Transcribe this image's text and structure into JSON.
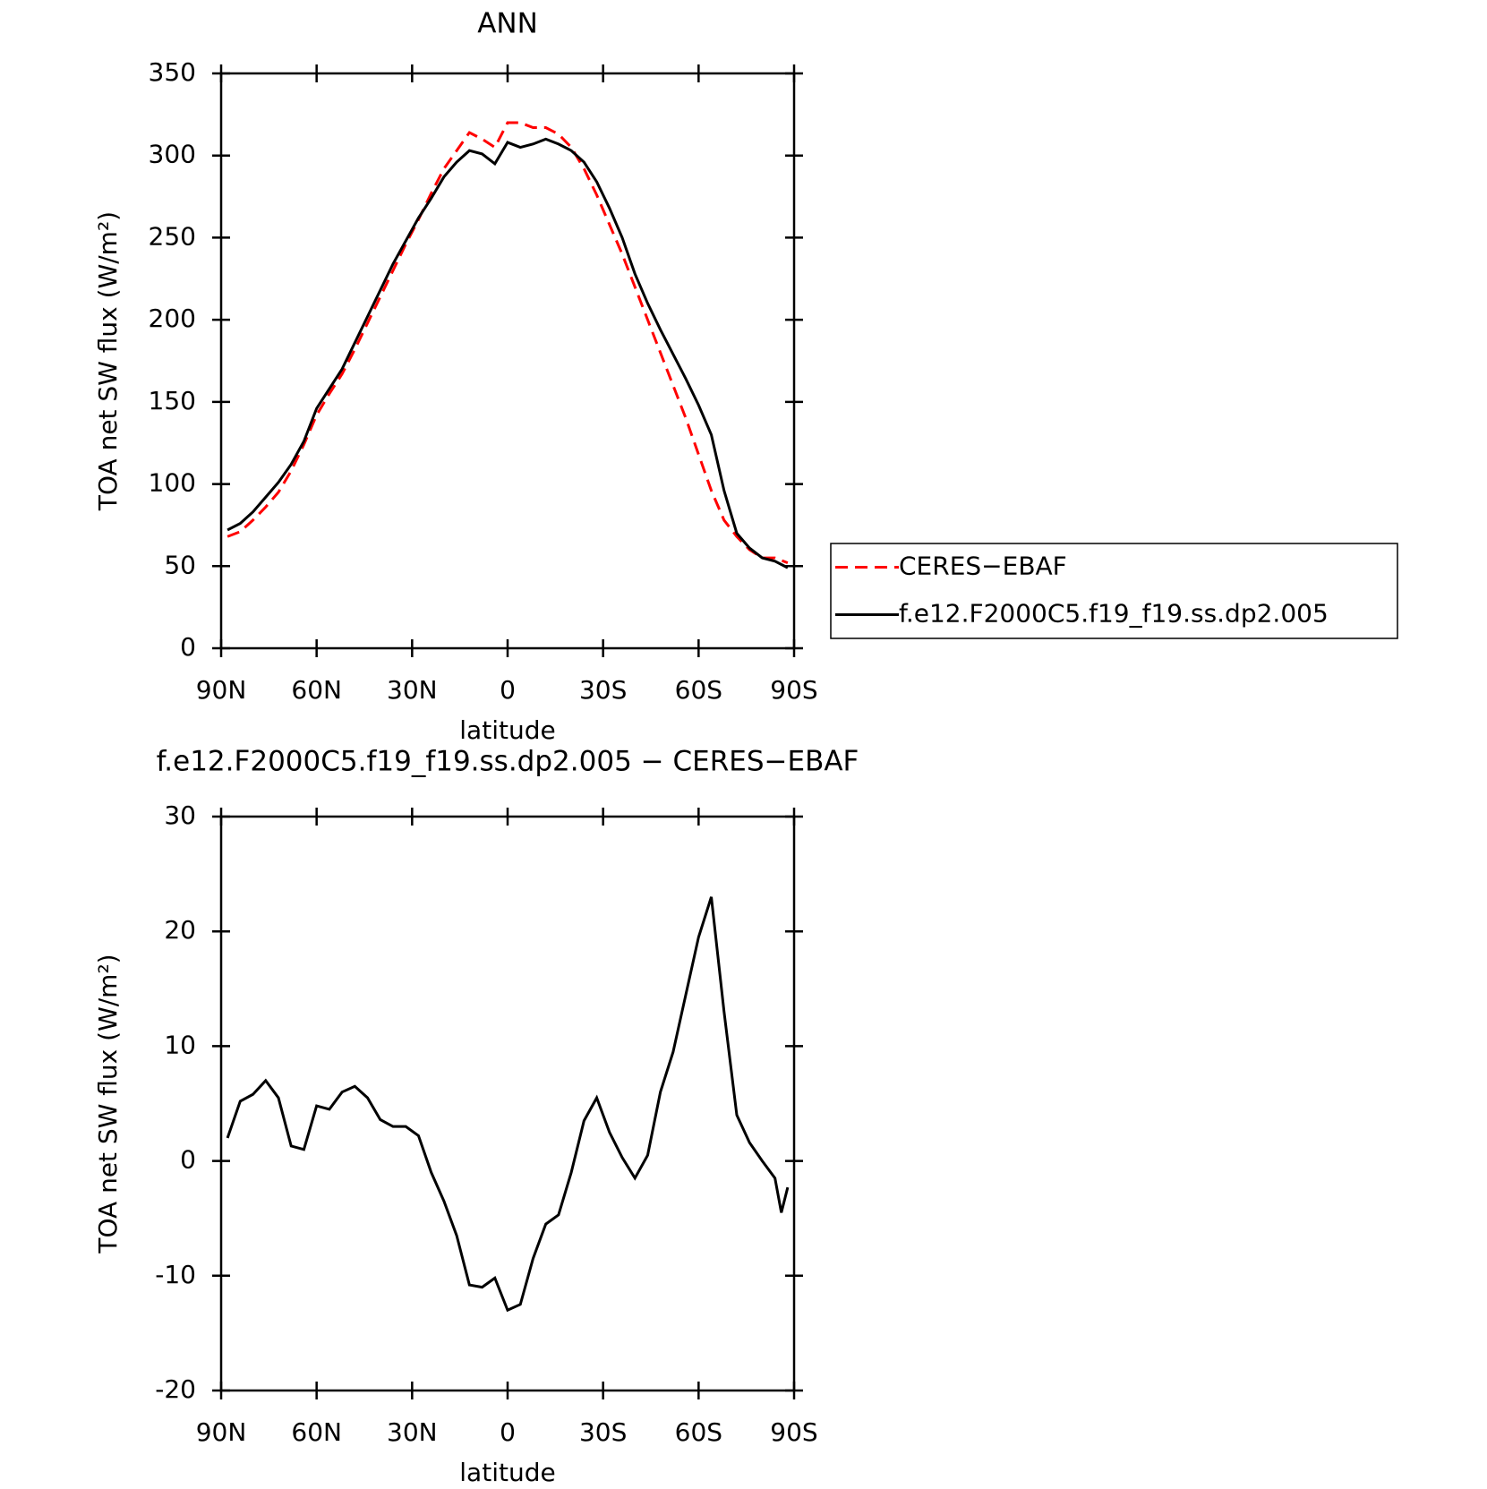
{
  "chart_data": [
    {
      "type": "line",
      "title": "ANN",
      "x_label": "latitude",
      "y_label": "TOA net SW flux (W/m²)",
      "x": [
        88,
        84,
        80,
        76,
        72,
        68,
        64,
        60,
        56,
        52,
        48,
        44,
        40,
        36,
        32,
        28,
        24,
        20,
        16,
        12,
        8,
        4,
        0,
        -4,
        -8,
        -12,
        -16,
        -20,
        -24,
        -28,
        -32,
        -36,
        -40,
        -44,
        -48,
        -52,
        -56,
        -60,
        -64,
        -68,
        -72,
        -76,
        -80,
        -84,
        -88
      ],
      "series": [
        {
          "name": "CERES−EBAF",
          "color": "#ff0000",
          "dashed": true,
          "values": [
            68,
            71,
            78,
            86,
            95,
            108,
            124,
            142,
            155,
            167,
            182,
            198,
            214,
            230,
            246,
            261,
            277,
            292,
            303,
            314,
            310,
            305,
            320,
            320,
            317,
            317,
            313,
            305,
            292,
            276,
            258,
            240,
            220,
            200,
            180,
            160,
            140,
            118,
            96,
            78,
            68,
            60,
            55,
            55,
            52
          ]
        },
        {
          "name": "f.e12.F2000C5.f19_f19.ss.dp2.005",
          "color": "#000000",
          "dashed": false,
          "values": [
            72,
            76,
            83,
            92,
            101,
            112,
            126,
            146,
            158,
            170,
            186,
            202,
            218,
            234,
            248,
            262,
            274,
            287,
            296,
            303,
            301,
            295,
            308,
            305,
            307,
            310,
            307,
            303,
            296,
            284,
            268,
            250,
            228,
            210,
            194,
            179,
            164,
            148,
            130,
            96,
            70,
            61,
            55,
            53,
            49
          ]
        }
      ],
      "xlim": [
        90,
        -90
      ],
      "xticks": [
        {
          "value": 90,
          "label": "90N"
        },
        {
          "value": 60,
          "label": "60N"
        },
        {
          "value": 30,
          "label": "30N"
        },
        0,
        {
          "value": -30,
          "label": "30S"
        },
        {
          "value": -60,
          "label": "60S"
        },
        {
          "value": -90,
          "label": "90S"
        }
      ],
      "ylim": [
        0,
        350
      ],
      "yticks": [
        0,
        50,
        100,
        150,
        200,
        250,
        300,
        350
      ],
      "legend": "right"
    },
    {
      "type": "line",
      "title": "f.e12.F2000C5.f19_f19.ss.dp2.005 − CERES−EBAF",
      "x_label": "latitude",
      "y_label": "TOA net SW flux (W/m²)",
      "x": [
        88,
        84,
        80,
        76,
        72,
        68,
        64,
        60,
        56,
        52,
        48,
        44,
        40,
        36,
        32,
        28,
        24,
        20,
        16,
        12,
        8,
        4,
        0,
        -4,
        -8,
        -12,
        -16,
        -20,
        -24,
        -28,
        -32,
        -36,
        -40,
        -44,
        -48,
        -52,
        -56,
        -60,
        -64,
        -68,
        -72,
        -76,
        -80,
        -84,
        -86,
        -88
      ],
      "series": [
        {
          "color": "#000000",
          "dashed": false,
          "values": [
            2,
            5.2,
            5.8,
            7,
            5.5,
            1.3,
            1,
            4.8,
            4.5,
            6,
            6.5,
            5.5,
            3.6,
            3,
            3,
            2.2,
            -1,
            -3.5,
            -6.5,
            -10.8,
            -11,
            -10.2,
            -13,
            -12.5,
            -8.5,
            -5.5,
            -4.7,
            -1,
            3.5,
            5.5,
            2.5,
            0.3,
            -1.5,
            0.5,
            6,
            9.5,
            14.5,
            19.5,
            23,
            13,
            4,
            1.6,
            0,
            -1.5,
            -4.5,
            -2.3
          ]
        }
      ],
      "xlim": [
        90,
        -90
      ],
      "xticks": [
        {
          "value": 90,
          "label": "90N"
        },
        {
          "value": 60,
          "label": "60N"
        },
        {
          "value": 30,
          "label": "30N"
        },
        0,
        {
          "value": -30,
          "label": "30S"
        },
        {
          "value": -60,
          "label": "60S"
        },
        {
          "value": -90,
          "label": "90S"
        }
      ],
      "ylim": [
        -20,
        30
      ],
      "yticks": [
        -20,
        -10,
        0,
        10,
        20,
        30
      ]
    }
  ]
}
